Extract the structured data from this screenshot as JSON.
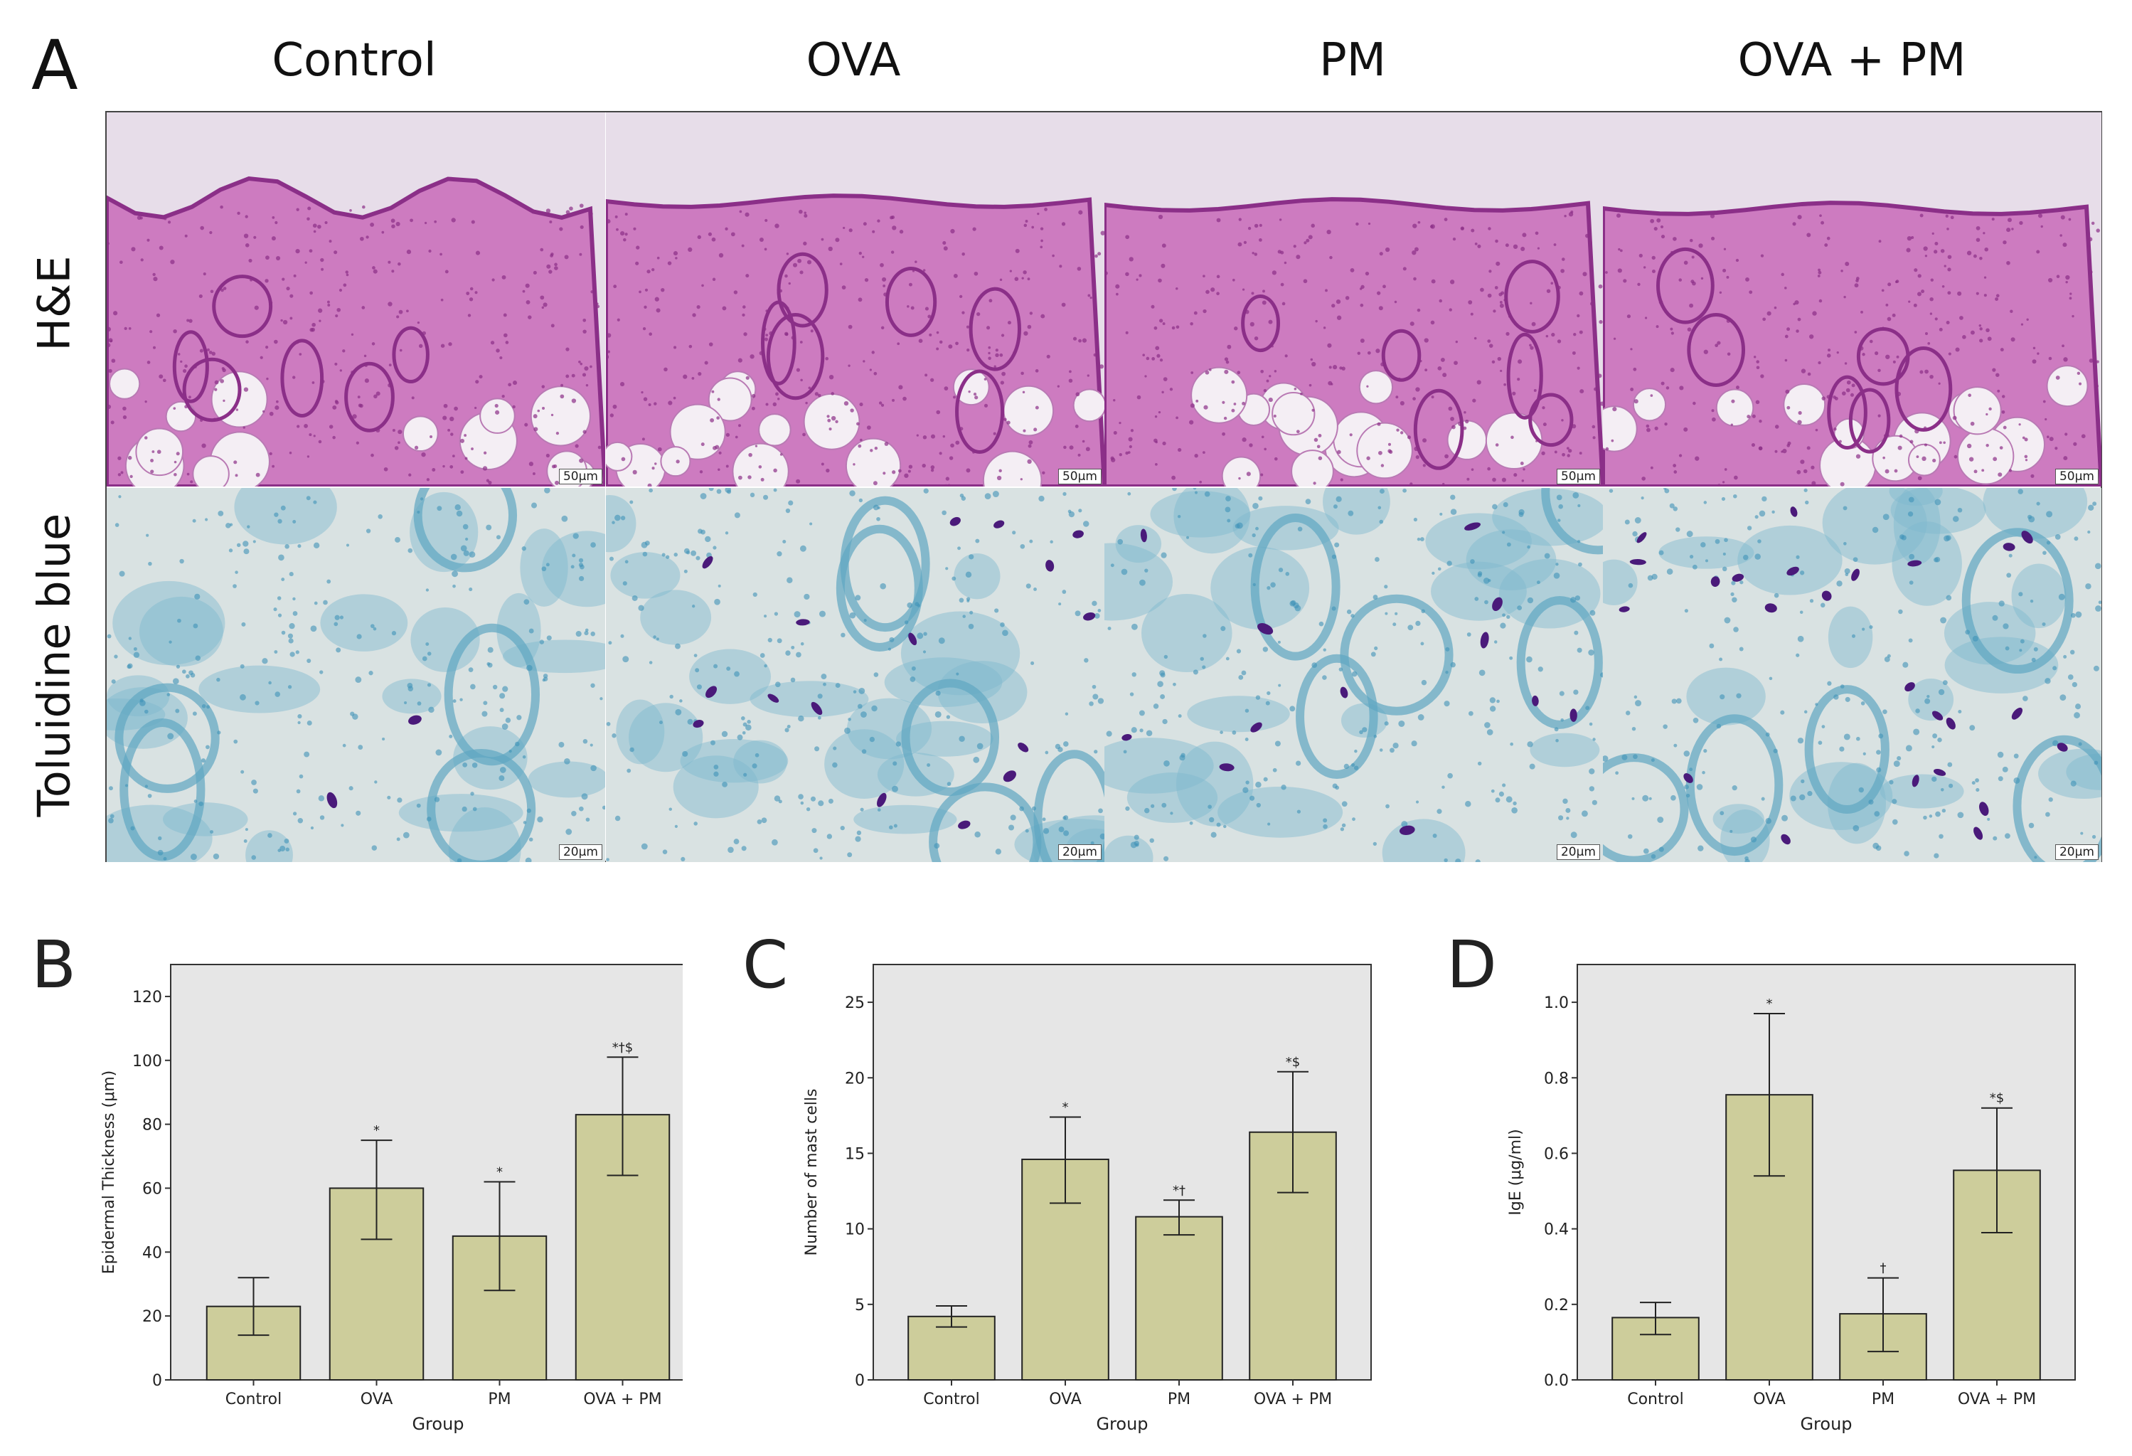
{
  "panel_a": {
    "letter": "A",
    "columns": [
      "Control",
      "OVA",
      "PM",
      "OVA + PM"
    ],
    "rows": [
      "H&E",
      "Toluidine blue"
    ],
    "scale_bars": [
      "50μm",
      "20μm"
    ],
    "colors": {
      "he_bg": "#e7dde9",
      "he_tissue": "#c86ab8",
      "he_dark": "#8b2f88",
      "tb_bg": "#d9e2e2",
      "tb_tissue": "#7fb8cf",
      "tb_cell": "#4a1a7a"
    }
  },
  "chart_data": [
    {
      "type": "bar",
      "letter": "B",
      "categories": [
        "Control",
        "OVA",
        "PM",
        "OVA + PM"
      ],
      "values": [
        23,
        60,
        45,
        83
      ],
      "error_upper": [
        32,
        75,
        62,
        101
      ],
      "error_lower": [
        14,
        44,
        28,
        64
      ],
      "annotations": [
        "",
        "*",
        "*",
        "*†$"
      ],
      "xlabel": "Group",
      "ylabel": "Epidermal Thickness (μm)",
      "ylim": [
        0,
        130
      ],
      "yticks": [
        0,
        20,
        40,
        60,
        80,
        100,
        120
      ],
      "ytick_labels": [
        "0",
        "20",
        "40",
        "60",
        "80",
        "100",
        "120"
      ],
      "bar_color": "#cdcd9b",
      "bg_color": "#e6e6e6"
    },
    {
      "type": "bar",
      "letter": "C",
      "categories": [
        "Control",
        "OVA",
        "PM",
        "OVA + PM"
      ],
      "values": [
        4.2,
        14.6,
        10.8,
        16.4
      ],
      "error_upper": [
        4.9,
        17.4,
        11.9,
        20.4
      ],
      "error_lower": [
        3.5,
        11.7,
        9.6,
        12.4
      ],
      "annotations": [
        "",
        "*",
        "*†",
        "*$"
      ],
      "xlabel": "Group",
      "ylabel": "Number of mast cells",
      "ylim": [
        0,
        27.5
      ],
      "yticks": [
        0,
        5,
        10,
        15,
        20,
        25
      ],
      "ytick_labels": [
        "0",
        "5",
        "10",
        "15",
        "20",
        "25"
      ],
      "bar_color": "#cdcd9b",
      "bg_color": "#e6e6e6"
    },
    {
      "type": "bar",
      "letter": "D",
      "categories": [
        "Control",
        "OVA",
        "PM",
        "OVA + PM"
      ],
      "values": [
        0.165,
        0.755,
        0.175,
        0.555
      ],
      "error_upper": [
        0.205,
        0.97,
        0.27,
        0.72
      ],
      "error_lower": [
        0.12,
        0.54,
        0.075,
        0.39
      ],
      "annotations": [
        "",
        "*",
        "†",
        "*$"
      ],
      "xlabel": "Group",
      "ylabel": "IgE (μg/ml)",
      "ylim": [
        0,
        1.1
      ],
      "yticks": [
        0,
        0.2,
        0.4,
        0.6,
        0.8,
        1.0
      ],
      "ytick_labels": [
        "0.0",
        "0.2",
        "0.4",
        "0.6",
        "0.8",
        "1.0"
      ],
      "bar_color": "#cdcd9b",
      "bg_color": "#e6e6e6"
    }
  ]
}
